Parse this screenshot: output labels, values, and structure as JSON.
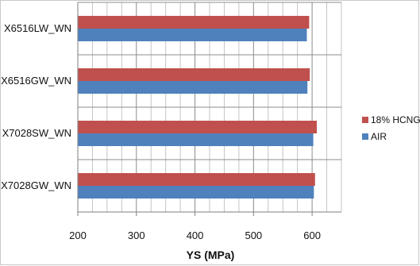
{
  "chart_data": {
    "type": "bar",
    "orientation": "horizontal",
    "categories": [
      "X6516LW_WN",
      "X6516GW_WN",
      "X7028SW_WN",
      "X7028GW_WN"
    ],
    "series": [
      {
        "name": "18% HCNG",
        "color": "#c0504d",
        "values": [
          595,
          596,
          608,
          605
        ]
      },
      {
        "name": "AIR",
        "color": "#4f81bd",
        "values": [
          591,
          592,
          602,
          603
        ]
      }
    ],
    "xlabel": "YS (MPa)",
    "xlim": [
      200,
      650
    ],
    "xticks": [
      200,
      300,
      400,
      500,
      600
    ],
    "grid": true,
    "legend_position": "right"
  }
}
